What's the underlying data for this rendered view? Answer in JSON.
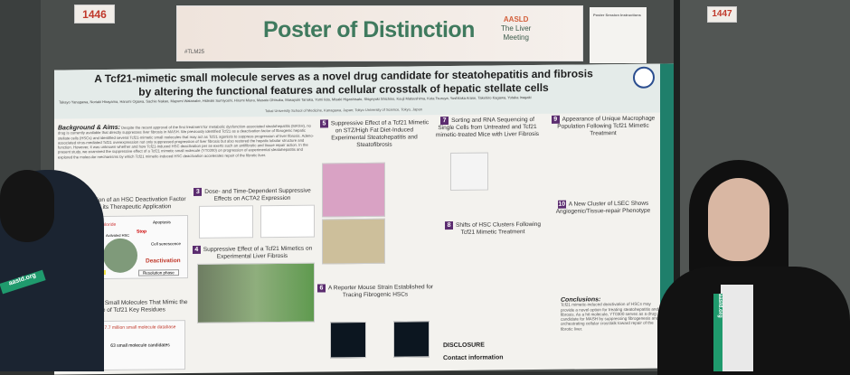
{
  "board_labels": {
    "left": "1446",
    "right": "1447"
  },
  "banner": {
    "title": "Poster of Distinction",
    "hashtag": "#TLM25",
    "logo_org": "AASLD",
    "logo_line1": "The Liver",
    "logo_line2": "Meeting"
  },
  "notice": {
    "title": "Poster Session Instructions"
  },
  "poster": {
    "title_line1": "A Tcf21-mimetic small molecule serves as a novel drug candidate for steatohepatitis and fibrosis",
    "title_line2": "by altering the functional features and cellular crosstalk of hepatic stellate cells",
    "authors": "Takayo Yanagawa, Noriaki Hirayama, Harumi Ogawa, Sachie Nakao, Mayumi Watanabe, Hideaki Sumiyoshi, Hiromi Miura, Masato Ohtsuka, Masayuki Tanaka, Yumi Iida, Misaki Higashisato, Shigeyuki Shichino, Kouji Matsushima, Kota Tsuruya, Yoshitaka Arase, Takehiro Kagawa, Yutaka Inagaki",
    "affiliations": "Tokai University School of Medicine, Kanagawa, Japan; Tokyo University of Science, Tokyo, Japan",
    "background_label": "Background & Aims:",
    "background_text": "Despite the recent approval of the first treatment for metabolic dysfunction-associated steatohepatitis (MASH), no drug is currently available that directly suppresses liver fibrosis in MASH. We previously identified Tcf21 as a deactivation factor of fibrogenic hepatic stellate cells (HSCs) and identified several Tcf21-mimetic small molecules that may act as Tcf21 agonists to suppress progression of liver fibrosis. Adeno-associated virus-mediated Tcf21 overexpression not only suppressed progression of liver fibrosis but also restored the hepatic lobular structure and function. However, it was unknown whether and how Tcf21-induced HSC deactivation per se exerts such an antifibrotic and tissue repair action. In the present study, we examined the suppressive effect of a Tcf21 mimetic small molecule (YT0300) on progression of experimental steatohepatitis and explored the molecular mechanisms by which Tcf21 mimetic-induced HSC deactivation accelerates repair of the fibrotic liver.",
    "sections": [
      {
        "n": "1",
        "title": "Identification of an HSC Deactivation Factor Tcf21 and its Therapeutic Application"
      },
      {
        "n": "2",
        "title": "Screening of Small Molecules That Mimic the Structure of Tcf21 Key Residues"
      },
      {
        "n": "3",
        "title": "Dose- and Time-Dependent Suppressive Effects on ACTA2 Expression"
      },
      {
        "n": "4",
        "title": "Suppressive Effect of a Tcf21 Mimetics on Experimental Liver Fibrosis"
      },
      {
        "n": "5",
        "title": "Suppressive Effect of a Tcf21 Mimetic on STZ/High Fat Diet-Induced Experimental Steatohepatitis and Steatofibrosis"
      },
      {
        "n": "6",
        "title": "A Reporter Mouse Strain Established for Tracing Fibrogenic HSCs"
      },
      {
        "n": "7",
        "title": "Sorting and RNA Sequencing of Single Cells from Untreated and Tcf21 mimetic-treated Mice with Liver Fibrosis"
      },
      {
        "n": "8",
        "title": "Shifts of HSC Clusters Following Tcf21 Mimetic Treatment"
      },
      {
        "n": "9",
        "title": "Appearance of Unique Macrophage Population Following Tcf21 Mimetic Treatment"
      },
      {
        "n": "10",
        "title": "A New Cluster of LSEC Shows Angiogenic/Tissue-repair Phenotype"
      }
    ],
    "fig1_labels": {
      "carbon": "Carbon tetrachloride",
      "stop": "Stop",
      "apoptosis": "Apoptosis",
      "senescence": "Cell senescence",
      "quiescent": "Quiescent HSC",
      "activated": "Activated HSC",
      "tcf21": "Tcf21",
      "deactivation": "Deactivation",
      "progression": "Progression phase",
      "resolution": "Resolution phase"
    },
    "screening": {
      "db": "7.7 million small molecule database",
      "candidates": "63 small molecule candidates"
    },
    "conclusions_title": "Conclusions:",
    "conclusions_text": "Tcf21 mimetic-induced deactivation of HSCs may provide a novel option for treating steatohepatitis and fibrosis. As a hit molecule, YT0300 serves as a drug candidate for MASH by suppressing fibrogenesis and orchestrating cellular crosstalk toward repair of the fibrotic liver.",
    "disclosure_title": "DISCLOSURE",
    "contact_title": "Contact information"
  },
  "lanyard_text": "aasld.org",
  "colors": {
    "banner_green": "#3f7a5e",
    "section_badge": "#5b2c6f",
    "poster_sidebar": "#1f7f6b",
    "lanyard": "#1f9a6d"
  }
}
